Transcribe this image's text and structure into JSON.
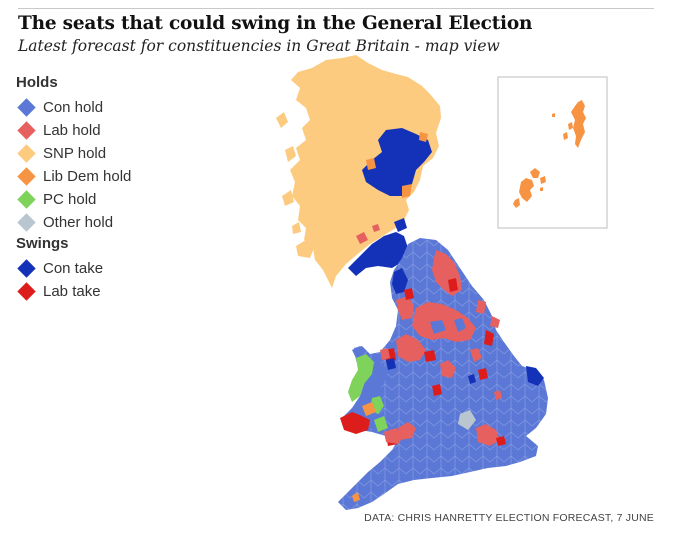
{
  "header": {
    "title": "The seats that could swing in the General Election",
    "subtitle": "Latest forecast for constituencies in Great Britain - map view"
  },
  "legend": {
    "holds_heading": "Holds",
    "holds": [
      {
        "label": "Con hold",
        "color": "#5b78d6"
      },
      {
        "label": "Lab hold",
        "color": "#e5605f"
      },
      {
        "label": "SNP hold",
        "color": "#fccb7f"
      },
      {
        "label": "Lib Dem hold",
        "color": "#f79443"
      },
      {
        "label": "PC hold",
        "color": "#80d35a"
      },
      {
        "label": "Other hold",
        "color": "#b9c6d0"
      }
    ],
    "swings_heading": "Swings",
    "swings": [
      {
        "label": "Con take",
        "color": "#1432b8"
      },
      {
        "label": "Lab take",
        "color": "#dd1c1c"
      }
    ]
  },
  "map": {
    "inset": "shetland-orkney"
  },
  "footer": {
    "source": "DATA: CHRIS HANRETTY ELECTION FORECAST, 7 JUNE"
  }
}
